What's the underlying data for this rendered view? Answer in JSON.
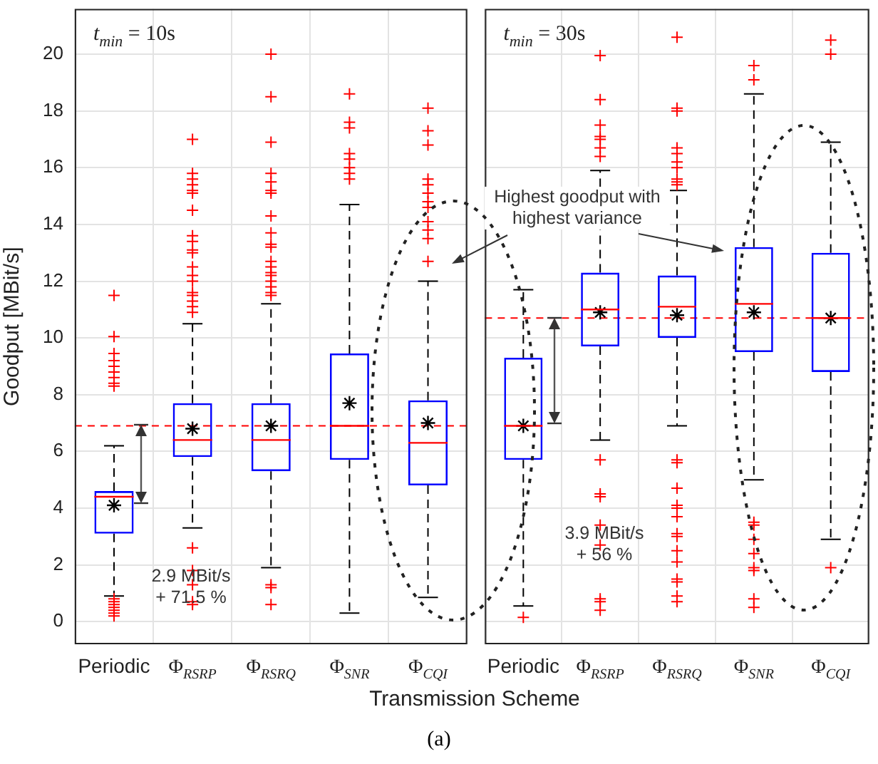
{
  "chart_data": [
    {
      "type": "box",
      "title": "t$_{min}$ = 10s",
      "xlabel": "Transmission Scheme",
      "ylabel": "Goodput [MBit/s]",
      "categories": [
        "Periodic",
        "Φ$_{RSRP}$",
        "Φ$_{RSRQ}$",
        "Φ$_{SNR}$",
        "Φ$_{CQI}$"
      ],
      "series": [
        {
          "color": "#0000ff",
          "boxes": [
            {
              "low": 0.9,
              "q1": 3.1,
              "median": 4.4,
              "q3": 4.6,
              "high": 6.2,
              "mean": 4.1,
              "outliers": [
                11.5,
                10.05,
                9.45,
                9.2,
                9.0,
                8.8,
                8.6,
                8.4,
                8.3,
                0.8,
                0.7,
                0.6,
                0.5,
                0.4,
                0.3,
                0.2
              ]
            },
            {
              "low": 3.3,
              "q1": 5.8,
              "median": 6.4,
              "q3": 7.7,
              "high": 10.5,
              "mean": 6.8,
              "outliers": [
                17.0,
                15.8,
                15.6,
                15.4,
                15.2,
                15.1,
                14.5,
                13.6,
                13.4,
                13.1,
                13.0,
                12.5,
                12.2,
                12.0,
                11.6,
                11.5,
                11.3,
                11.1,
                10.9,
                2.6,
                1.8,
                1.3,
                0.7,
                0.6
              ]
            },
            {
              "low": 1.9,
              "q1": 5.3,
              "median": 6.4,
              "q3": 7.7,
              "high": 11.2,
              "mean": 6.9,
              "outliers": [
                20.0,
                18.5,
                16.9,
                15.8,
                15.5,
                15.2,
                15.1,
                14.3,
                13.7,
                13.3,
                13.2,
                12.7,
                12.5,
                12.3,
                12.2,
                12.0,
                11.8,
                11.6,
                11.5,
                1.3,
                1.2,
                0.6
              ]
            },
            {
              "low": 0.3,
              "q1": 5.7,
              "median": 6.9,
              "q3": 9.45,
              "high": 14.7,
              "mean": 7.7,
              "outliers": [
                18.6,
                17.6,
                17.4,
                16.5,
                16.3,
                16.0,
                15.8,
                15.6
              ]
            },
            {
              "low": 0.85,
              "q1": 4.8,
              "median": 6.3,
              "q3": 7.8,
              "high": 12.0,
              "mean": 7.0,
              "outliers": [
                18.1,
                17.3,
                16.8,
                15.6,
                15.4,
                15.1,
                14.8,
                14.6,
                14.1,
                13.8,
                13.5,
                12.7
              ]
            }
          ]
        }
      ],
      "ylim": [
        -0.8,
        21.6
      ],
      "yticks": [
        0,
        2,
        4,
        6,
        8,
        10,
        12,
        14,
        16,
        18,
        20
      ],
      "grid": true,
      "legend": false,
      "ref_lines": [
        {
          "axis": "y",
          "value": 6.9,
          "color": "#ff0000",
          "line_style": "dashed"
        }
      ],
      "annotations": [
        "2.9 MBit/s + 71.5 %"
      ]
    },
    {
      "type": "box",
      "title": "t$_{min}$ = 30s",
      "categories": [
        "Periodic",
        "Φ$_{RSRP}$",
        "Φ$_{RSRQ}$",
        "Φ$_{SNR}$",
        "Φ$_{CQI}$"
      ],
      "series": [
        {
          "color": "#0000ff",
          "boxes": [
            {
              "low": 0.55,
              "q1": 5.7,
              "median": 6.9,
              "q3": 9.3,
              "high": 11.7,
              "mean": 6.9,
              "outliers": [
                0.15
              ]
            },
            {
              "low": 6.4,
              "q1": 9.7,
              "median": 11.0,
              "q3": 12.3,
              "high": 15.9,
              "mean": 10.9,
              "outliers": [
                19.95,
                18.4,
                17.5,
                17.1,
                17.0,
                16.7,
                16.4,
                5.7,
                4.5,
                4.4,
                3.4,
                2.7,
                0.8,
                0.7,
                0.4
              ]
            },
            {
              "low": 6.9,
              "q1": 10.0,
              "median": 11.1,
              "q3": 12.2,
              "high": 15.2,
              "mean": 10.8,
              "outliers": [
                20.6,
                18.1,
                18.0,
                16.7,
                16.5,
                16.2,
                16.0,
                15.6,
                15.5,
                15.4,
                5.7,
                5.6,
                4.7,
                4.1,
                4.0,
                3.7,
                3.1,
                3.0,
                2.5,
                2.1,
                1.5,
                1.4,
                0.9,
                0.7
              ]
            },
            {
              "low": 5.0,
              "q1": 9.5,
              "median": 11.2,
              "q3": 13.2,
              "high": 18.6,
              "mean": 10.9,
              "outliers": [
                19.6,
                19.1,
                3.5,
                3.4,
                2.9,
                2.4,
                1.9,
                1.8,
                0.8,
                0.5
              ]
            },
            {
              "low": 2.9,
              "q1": 8.8,
              "median": 10.7,
              "q3": 13.0,
              "high": 16.9,
              "mean": 10.7,
              "outliers": [
                20.5,
                20.0,
                1.9
              ]
            }
          ]
        }
      ],
      "ylim": [
        -0.8,
        21.6
      ],
      "yticks": [
        0,
        2,
        4,
        6,
        8,
        10,
        12,
        14,
        16,
        18,
        20
      ],
      "grid": true,
      "legend": false,
      "tick_labels": "x",
      "ref_lines": [
        {
          "axis": "y",
          "value": 10.7,
          "color": "#ff0000",
          "line_style": "dashed"
        }
      ],
      "annotations": [
        "3.9 MBit/s + 56 %",
        "Highest goodput with highest variance",
        "(a)"
      ]
    }
  ]
}
